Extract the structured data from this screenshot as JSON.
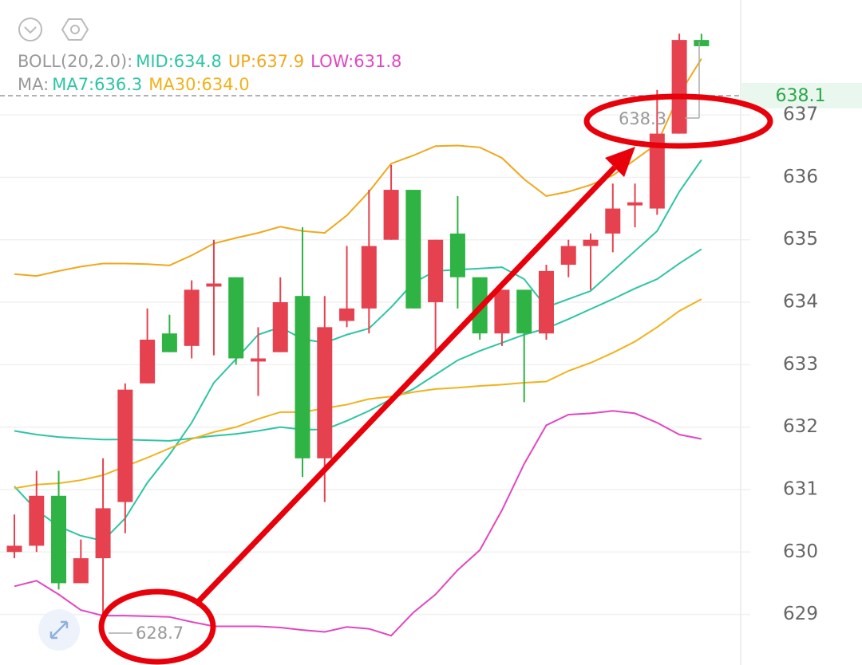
{
  "chart_data": {
    "type": "candlestick",
    "ylim": [
      628.19,
      638.84
    ],
    "yticks": [
      629,
      630,
      631,
      632,
      633,
      634,
      635,
      636,
      637
    ],
    "grid": true,
    "up_color": "#e5414f",
    "down_color": "#2fb344",
    "candles": {
      "open": [
        630.0,
        630.1,
        630.9,
        629.5,
        629.9,
        630.8,
        632.7,
        633.5,
        633.3,
        634.25,
        634.4,
        633.05,
        633.2,
        634.1,
        631.5,
        633.7,
        633.9,
        635.0,
        635.8,
        634.0,
        635.1,
        634.4,
        633.5,
        634.2,
        633.5,
        634.6,
        634.9,
        635.1,
        635.55,
        635.5,
        636.7,
        638.2
      ],
      "close": [
        630.1,
        630.9,
        629.5,
        629.9,
        630.7,
        632.6,
        633.4,
        633.2,
        634.2,
        634.3,
        633.1,
        633.1,
        634.0,
        631.5,
        633.6,
        633.9,
        634.9,
        635.8,
        633.9,
        635.0,
        634.4,
        633.5,
        634.2,
        633.5,
        634.5,
        634.9,
        635.0,
        635.5,
        635.6,
        636.7,
        638.2,
        638.1
      ],
      "high": [
        630.6,
        631.3,
        631.3,
        630.2,
        631.5,
        632.7,
        633.9,
        633.8,
        634.35,
        635.0,
        634.4,
        633.6,
        634.4,
        635.2,
        634.1,
        634.9,
        635.8,
        636.2,
        635.8,
        635.0,
        635.7,
        634.4,
        634.2,
        634.2,
        634.6,
        635.0,
        635.1,
        635.9,
        635.9,
        637.4,
        638.3,
        638.3
      ],
      "low": [
        629.9,
        630.0,
        629.4,
        629.5,
        628.7,
        630.3,
        632.7,
        633.2,
        633.1,
        633.15,
        633.0,
        632.5,
        633.2,
        631.2,
        630.8,
        633.6,
        633.5,
        635.0,
        633.9,
        633.2,
        633.9,
        633.4,
        633.3,
        632.4,
        633.4,
        634.4,
        634.2,
        634.8,
        635.2,
        635.4,
        636.7,
        638.1
      ]
    },
    "boll": {
      "label": "BOLL(20,2.0):",
      "series": [
        {
          "name": "MID:634.8",
          "color": "#2ec4a4",
          "values": [
            631.94,
            631.88,
            631.84,
            631.82,
            631.8,
            631.8,
            631.79,
            631.78,
            631.82,
            631.86,
            631.89,
            631.94,
            632.0,
            631.96,
            631.96,
            632.1,
            632.26,
            632.45,
            632.61,
            632.84,
            633.07,
            633.22,
            633.35,
            633.48,
            633.58,
            633.73,
            633.89,
            634.05,
            634.22,
            634.37,
            634.62,
            634.85
          ]
        },
        {
          "name": "UP:637.9",
          "color": "#f0a81c",
          "values": [
            634.45,
            634.42,
            634.5,
            634.57,
            634.62,
            634.62,
            634.61,
            634.59,
            634.75,
            634.94,
            635.03,
            635.11,
            635.21,
            635.14,
            635.11,
            635.39,
            635.77,
            636.22,
            636.35,
            636.5,
            636.51,
            636.48,
            636.31,
            635.97,
            635.7,
            635.77,
            635.88,
            636.03,
            636.28,
            636.54,
            637.33,
            637.9
          ]
        },
        {
          "name": "LOW:631.8",
          "color": "#e048c0",
          "values": [
            629.45,
            629.54,
            629.32,
            629.07,
            628.98,
            628.98,
            628.97,
            628.96,
            628.88,
            628.81,
            628.81,
            628.81,
            628.79,
            628.75,
            628.72,
            628.8,
            628.77,
            628.66,
            629.03,
            629.32,
            629.71,
            630.03,
            630.67,
            631.41,
            632.03,
            632.2,
            632.22,
            632.26,
            632.22,
            632.07,
            631.88,
            631.81
          ]
        }
      ]
    },
    "ma": {
      "label": "MA:",
      "series": [
        {
          "name": "MA7:636.3",
          "color": "#2ec4a4",
          "values": [
            631.05,
            630.67,
            630.41,
            630.26,
            630.18,
            630.54,
            631.11,
            631.56,
            632.07,
            632.71,
            633.09,
            633.48,
            633.6,
            633.41,
            633.35,
            633.48,
            633.58,
            633.92,
            634.31,
            634.5,
            634.52,
            634.54,
            634.56,
            634.37,
            633.92,
            634.05,
            634.18,
            634.5,
            634.82,
            635.14,
            635.77,
            636.28
          ]
        },
        {
          "name": "MA30:634.0",
          "color": "#f0b21c",
          "values": [
            631.02,
            631.08,
            631.1,
            631.15,
            631.23,
            631.37,
            631.51,
            631.66,
            631.81,
            631.92,
            632.0,
            632.13,
            632.24,
            632.24,
            632.3,
            632.36,
            632.45,
            632.49,
            632.56,
            632.61,
            632.63,
            632.66,
            632.68,
            632.71,
            632.73,
            632.9,
            633.03,
            633.19,
            633.37,
            633.6,
            633.86,
            634.05
          ]
        }
      ]
    },
    "max_label": "638.3",
    "min_label": "628.7",
    "price_label": "638.1"
  }
}
